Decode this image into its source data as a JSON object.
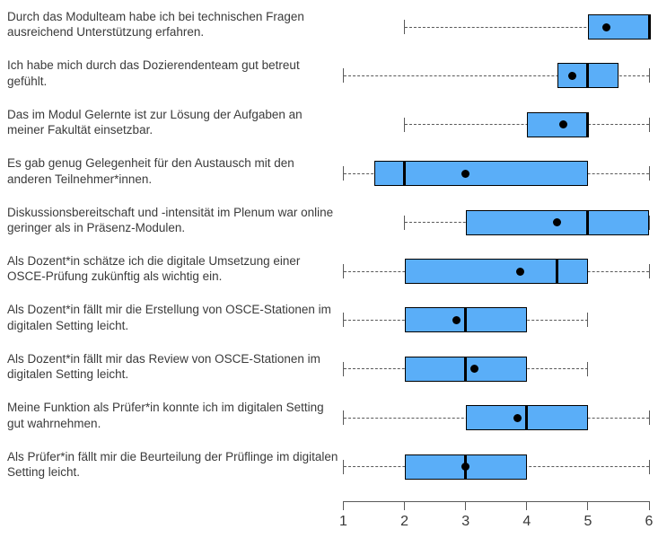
{
  "chart_data": {
    "type": "boxplot",
    "orientation": "horizontal",
    "title": "",
    "xlabel": "",
    "ylabel": "",
    "axis": {
      "min": 1,
      "max": 6,
      "ticks": [
        1,
        2,
        3,
        4,
        5,
        6
      ]
    },
    "grid": false,
    "legend": false,
    "box_fill_color": "#5aaef8",
    "box_border_color": "#000000",
    "median_color": "#000000",
    "mean_marker_color": "#000000",
    "whisker_color": "#595959",
    "items": [
      {
        "label": "Durch das Modulteam habe ich bei technischen Fragen ausreichend Unterstützung erfahren.",
        "whisker_low": 2,
        "q1": 5,
        "median": 6,
        "q3": 6,
        "whisker_high": 6,
        "mean": 5.3
      },
      {
        "label": "Ich habe mich durch das Dozierendenteam gut betreut gefühlt.",
        "whisker_low": 1,
        "q1": 4.5,
        "median": 5,
        "q3": 5.5,
        "whisker_high": 6,
        "mean": 4.75
      },
      {
        "label": "Das im Modul Gelernte ist zur Lösung der Aufgaben an meiner Fakultät einsetzbar.",
        "whisker_low": 2,
        "q1": 4,
        "median": 5,
        "q3": 5,
        "whisker_high": 6,
        "mean": 4.6
      },
      {
        "label": "Es gab genug Gelegenheit für den Austausch mit den anderen Teilnehmer*innen.",
        "whisker_low": 1,
        "q1": 1.5,
        "median": 2,
        "q3": 5,
        "whisker_high": 6,
        "mean": 3.0
      },
      {
        "label": "Diskussionsbereitschaft und -intensität im Plenum war online geringer als in Präsenz-Modulen.",
        "whisker_low": 2,
        "q1": 3,
        "median": 5,
        "q3": 6,
        "whisker_high": 6,
        "mean": 4.5
      },
      {
        "label": "Als Dozent*in schätze ich die digitale Umsetzung einer OSCE-Prüfung zukünftig als wichtig ein.",
        "whisker_low": 1,
        "q1": 2,
        "median": 4.5,
        "q3": 5,
        "whisker_high": 6,
        "mean": 3.9
      },
      {
        "label": "Als Dozent*in fällt mir die Erstellung von OSCE-Stationen im digitalen Setting leicht.",
        "whisker_low": 1,
        "q1": 2,
        "median": 3,
        "q3": 4,
        "whisker_high": 5,
        "mean": 2.85
      },
      {
        "label": "Als Dozent*in fällt mir das Review von OSCE-Stationen im digitalen Setting leicht.",
        "whisker_low": 1,
        "q1": 2,
        "median": 3,
        "q3": 4,
        "whisker_high": 5,
        "mean": 3.15
      },
      {
        "label": "Meine Funktion als Prüfer*in konnte ich im digitalen Setting gut wahrnehmen.",
        "whisker_low": 1,
        "q1": 3,
        "median": 4,
        "q3": 5,
        "whisker_high": 6,
        "mean": 3.85
      },
      {
        "label": "Als Prüfer*in fällt mir die Beurteilung der Prüflinge im digitalen Setting leicht.",
        "whisker_low": 1,
        "q1": 2,
        "median": 3,
        "q3": 4,
        "whisker_high": 6,
        "mean": 3.0
      }
    ]
  }
}
